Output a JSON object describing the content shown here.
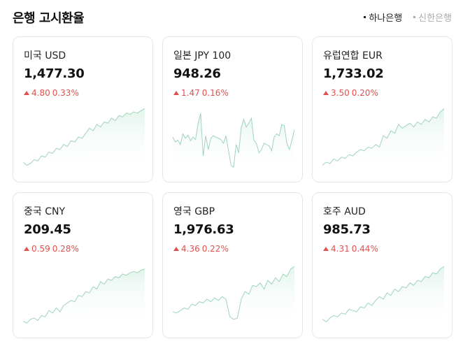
{
  "header": {
    "title": "은행 고시환율",
    "banks": [
      {
        "label": "하나은행",
        "active": true
      },
      {
        "label": "신한은행",
        "active": false
      }
    ]
  },
  "colors": {
    "up": "#e0504f",
    "line": "#9fd4bc",
    "fill": "#e3f4ec"
  },
  "cards": [
    {
      "name": "미국 USD",
      "value": "1,477.30",
      "change": "4.80",
      "percent": "0.33%",
      "direction": "up",
      "sparkline": [
        10,
        5,
        8,
        14,
        12,
        20,
        18,
        26,
        24,
        32,
        30,
        38,
        35,
        44,
        42,
        50,
        48,
        56,
        64,
        60,
        70,
        66,
        74,
        72,
        80,
        76,
        84,
        82,
        88,
        86,
        90,
        88,
        92,
        95
      ]
    },
    {
      "name": "일본 JPY 100",
      "value": "948.26",
      "change": "1.47",
      "percent": "0.16%",
      "direction": "up",
      "sparkline": [
        50,
        42,
        45,
        38,
        55,
        48,
        53,
        44,
        50,
        46,
        72,
        88,
        20,
        52,
        30,
        48,
        52,
        50,
        48,
        46,
        40,
        52,
        28,
        5,
        2,
        38,
        25,
        65,
        78,
        66,
        72,
        80,
        45,
        40,
        25,
        30,
        40,
        38,
        36,
        28,
        50,
        55,
        52,
        70,
        68,
        40,
        30,
        45,
        62
      ]
    },
    {
      "name": "유럽연합 EUR",
      "value": "1,733.02",
      "change": "3.50",
      "percent": "0.20%",
      "direction": "up",
      "sparkline": [
        5,
        10,
        8,
        15,
        12,
        18,
        16,
        22,
        20,
        26,
        30,
        28,
        34,
        32,
        38,
        34,
        52,
        48,
        60,
        56,
        70,
        64,
        68,
        72,
        66,
        74,
        70,
        78,
        74,
        82,
        80,
        90,
        95
      ]
    },
    {
      "name": "중국 CNY",
      "value": "209.45",
      "change": "0.59",
      "percent": "0.28%",
      "direction": "up",
      "sparkline": [
        5,
        2,
        8,
        10,
        6,
        14,
        12,
        22,
        18,
        26,
        20,
        30,
        34,
        38,
        36,
        46,
        44,
        52,
        50,
        60,
        56,
        68,
        64,
        72,
        70,
        76,
        74,
        80,
        78,
        82,
        84,
        82,
        86,
        88
      ]
    },
    {
      "name": "영국 GBP",
      "value": "1,976.63",
      "change": "4.36",
      "percent": "0.22%",
      "direction": "up",
      "sparkline": [
        20,
        18,
        22,
        26,
        24,
        32,
        30,
        36,
        34,
        40,
        36,
        42,
        38,
        44,
        40,
        12,
        8,
        10,
        40,
        52,
        48,
        62,
        60,
        66,
        56,
        70,
        64,
        74,
        68,
        80,
        76,
        88,
        92
      ]
    },
    {
      "name": "호주 AUD",
      "value": "985.73",
      "change": "4.31",
      "percent": "0.44%",
      "direction": "up",
      "sparkline": [
        8,
        4,
        10,
        14,
        12,
        18,
        16,
        24,
        22,
        20,
        28,
        26,
        34,
        30,
        38,
        44,
        40,
        50,
        46,
        56,
        52,
        60,
        58,
        66,
        62,
        70,
        68,
        76,
        74,
        82,
        80,
        88,
        92
      ]
    }
  ]
}
